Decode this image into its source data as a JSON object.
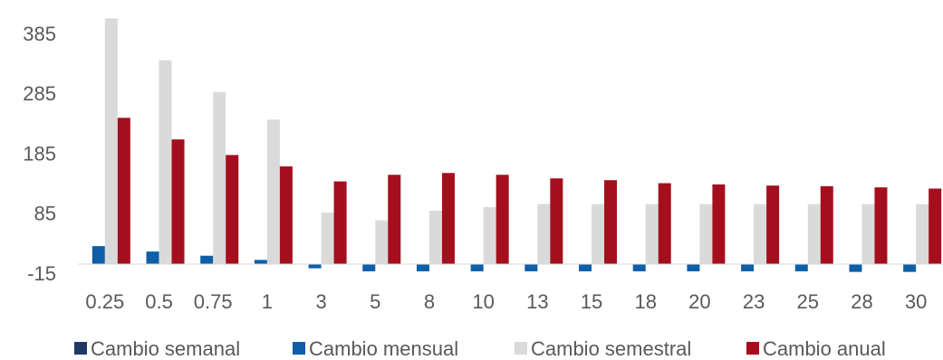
{
  "chart_data": {
    "type": "bar",
    "title": "",
    "xlabel": "",
    "ylabel": "",
    "categories": [
      "0.25",
      "0.5",
      "0.75",
      "1",
      "3",
      "5",
      "8",
      "10",
      "13",
      "15",
      "18",
      "20",
      "23",
      "25",
      "28",
      "30"
    ],
    "y_ticks": [
      "385",
      "285",
      "185",
      "85",
      "-15"
    ],
    "ylim": [
      -15,
      415
    ],
    "grid": false,
    "legend_position": "bottom",
    "series": [
      {
        "name": "Cambio semanal",
        "color": "#1f3864",
        "values": [
          0,
          0,
          0,
          0,
          0,
          0,
          0,
          0,
          0,
          0,
          0,
          0,
          0,
          0,
          0,
          0
        ]
      },
      {
        "name": "Cambio mensual",
        "color": "#0f5ea8",
        "values": [
          30,
          21,
          14,
          7,
          -7,
          -12,
          -12,
          -12,
          -12,
          -12,
          -12,
          -12,
          -12,
          -12,
          -13,
          -13
        ]
      },
      {
        "name": "Cambio semestral",
        "color": "#dadada",
        "values": [
          410,
          340,
          287,
          241,
          86,
          73,
          89,
          95,
          100,
          100,
          100,
          100,
          100,
          100,
          100,
          100
        ]
      },
      {
        "name": "Cambio anual",
        "color": "#a50f1d",
        "values": [
          244,
          208,
          182,
          163,
          138,
          149,
          152,
          149,
          143,
          140,
          135,
          133,
          131,
          130,
          128,
          126
        ]
      }
    ]
  }
}
